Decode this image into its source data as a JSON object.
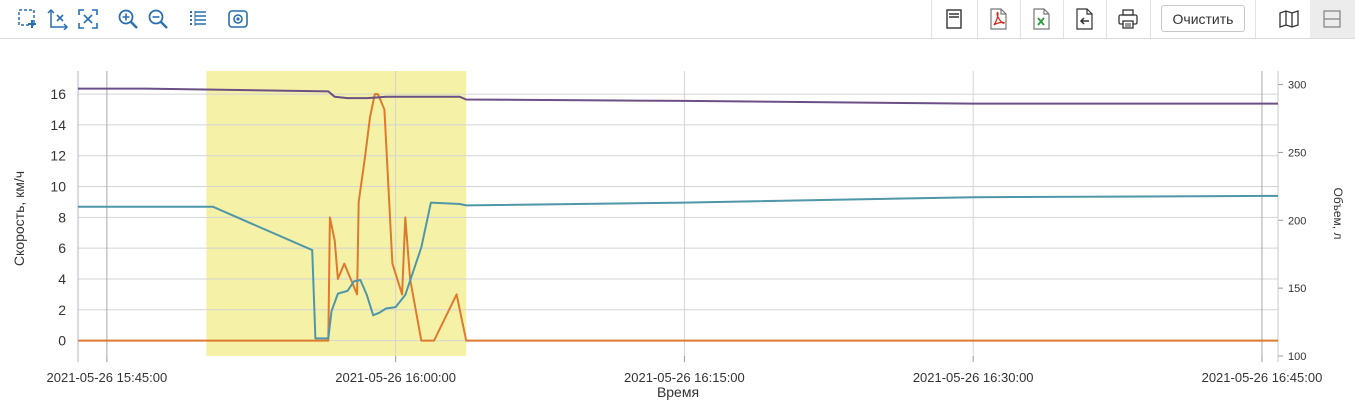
{
  "toolbar": {
    "left_icons": [
      "select-zoom-icon",
      "reset-x-zoom-icon",
      "reset-zoom-icon",
      "zoom-in-icon",
      "zoom-out-icon",
      "legend-list-icon",
      "snapshot-icon"
    ],
    "right_icons": [
      "menu-icon",
      "pdf-export-icon",
      "excel-export-icon",
      "import-icon",
      "print-icon"
    ],
    "clear_label": "Очистить",
    "view_toggles": [
      "map-view-icon",
      "table-view-icon"
    ]
  },
  "colors": {
    "grid": "#d4d4d4",
    "highlight": "#f5f2a8",
    "speed": "#dd7a2e",
    "fuel_teal": "#4f97a8",
    "fuel_purple": "#6b4f86"
  },
  "chart_data": {
    "type": "line",
    "xlabel": "Время",
    "ylabel": "Скорость, км/ч",
    "y2label": "Объем, л",
    "ylim": [
      -1,
      17.5
    ],
    "y2lim": [
      100,
      310
    ],
    "yticks": [
      0,
      2,
      4,
      6,
      8,
      10,
      12,
      14,
      16
    ],
    "y2ticks": [
      100,
      150,
      200,
      250,
      300
    ],
    "xlim": [
      "2021-05-26 15:43:30",
      "2021-05-26 16:45:50"
    ],
    "xticks": [
      "2021-05-26 15:45:00",
      "2021-05-26 16:00:00",
      "2021-05-26 16:15:00",
      "2021-05-26 16:30:00",
      "2021-05-26 16:45:00"
    ],
    "highlight_range": [
      "2021-05-26 15:50:10",
      "2021-05-26 16:03:40"
    ],
    "series": [
      {
        "axis": "left",
        "color": "#dd7a2e",
        "points": [
          [
            "2021-05-26 15:43:30",
            0
          ],
          [
            "2021-05-26 15:55:30",
            0
          ],
          [
            "2021-05-26 15:56:30",
            0
          ],
          [
            "2021-05-26 15:56:35",
            8
          ],
          [
            "2021-05-26 15:56:50",
            6.5
          ],
          [
            "2021-05-26 15:57:00",
            4
          ],
          [
            "2021-05-26 15:57:20",
            5
          ],
          [
            "2021-05-26 15:57:40",
            4
          ],
          [
            "2021-05-26 15:58:00",
            3
          ],
          [
            "2021-05-26 15:58:05",
            9
          ],
          [
            "2021-05-26 15:58:25",
            12
          ],
          [
            "2021-05-26 15:58:40",
            14.5
          ],
          [
            "2021-05-26 15:58:55",
            16
          ],
          [
            "2021-05-26 15:59:05",
            16
          ],
          [
            "2021-05-26 15:59:25",
            15
          ],
          [
            "2021-05-26 15:59:50",
            5
          ],
          [
            "2021-05-26 16:00:20",
            3
          ],
          [
            "2021-05-26 16:00:30",
            8
          ],
          [
            "2021-05-26 16:00:45",
            4
          ],
          [
            "2021-05-26 16:01:20",
            0
          ],
          [
            "2021-05-26 16:02:00",
            0
          ],
          [
            "2021-05-26 16:03:10",
            3
          ],
          [
            "2021-05-26 16:03:40",
            0
          ],
          [
            "2021-05-26 16:45:50",
            0
          ]
        ]
      },
      {
        "axis": "right",
        "color": "#4f97a8",
        "points": [
          [
            "2021-05-26 15:43:30",
            210
          ],
          [
            "2021-05-26 15:50:30",
            210
          ],
          [
            "2021-05-26 15:55:40",
            178
          ],
          [
            "2021-05-26 15:55:50",
            113
          ],
          [
            "2021-05-26 15:56:30",
            113
          ],
          [
            "2021-05-26 15:56:40",
            133
          ],
          [
            "2021-05-26 15:57:00",
            146
          ],
          [
            "2021-05-26 15:57:30",
            148
          ],
          [
            "2021-05-26 15:57:50",
            155
          ],
          [
            "2021-05-26 15:58:10",
            156
          ],
          [
            "2021-05-26 15:58:30",
            145
          ],
          [
            "2021-05-26 15:58:50",
            130
          ],
          [
            "2021-05-26 15:59:10",
            132
          ],
          [
            "2021-05-26 15:59:30",
            135
          ],
          [
            "2021-05-26 16:00:00",
            136
          ],
          [
            "2021-05-26 16:00:30",
            145
          ],
          [
            "2021-05-26 16:01:20",
            180
          ],
          [
            "2021-05-26 16:01:50",
            213
          ],
          [
            "2021-05-26 16:03:20",
            212
          ],
          [
            "2021-05-26 16:03:40",
            211
          ],
          [
            "2021-05-26 16:15:00",
            213
          ],
          [
            "2021-05-26 16:30:00",
            217
          ],
          [
            "2021-05-26 16:45:50",
            218
          ]
        ]
      },
      {
        "axis": "right",
        "color": "#6b4f86",
        "points": [
          [
            "2021-05-26 15:43:30",
            297
          ],
          [
            "2021-05-26 15:47:00",
            297
          ],
          [
            "2021-05-26 15:56:30",
            295
          ],
          [
            "2021-05-26 15:56:50",
            291
          ],
          [
            "2021-05-26 15:57:30",
            290
          ],
          [
            "2021-05-26 15:58:30",
            290
          ],
          [
            "2021-05-26 15:59:30",
            291
          ],
          [
            "2021-05-26 16:03:20",
            291
          ],
          [
            "2021-05-26 16:03:40",
            289
          ],
          [
            "2021-05-26 16:15:00",
            288
          ],
          [
            "2021-05-26 16:30:00",
            286
          ],
          [
            "2021-05-26 16:45:50",
            286
          ]
        ]
      }
    ]
  }
}
